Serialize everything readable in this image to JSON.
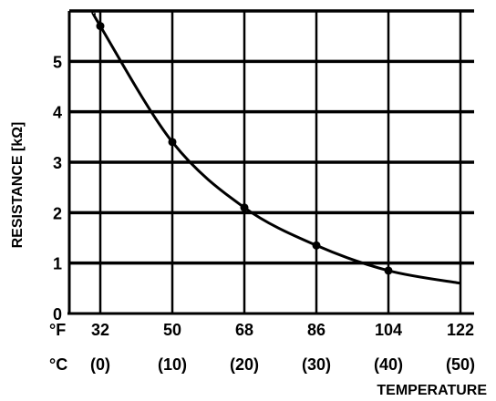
{
  "chart_data": {
    "type": "line",
    "ylabel": "RESISTANCE [kΩ]",
    "xlabel": "TEMPERATURE",
    "x_unit_labels": [
      "°F",
      "°C"
    ],
    "x_ticks_f": [
      32,
      50,
      68,
      86,
      104,
      122
    ],
    "x_ticks_c": [
      "(0)",
      "(10)",
      "(20)",
      "(30)",
      "(40)",
      "(50)"
    ],
    "y_ticks": [
      0,
      1,
      2,
      3,
      4,
      5
    ],
    "xlim_f": [
      32,
      122
    ],
    "ylim": [
      0,
      6
    ],
    "grid": true,
    "series": [
      {
        "points": [
          {
            "x": 32,
            "y": 5.7
          },
          {
            "x": 50,
            "y": 3.4
          },
          {
            "x": 68,
            "y": 2.1
          },
          {
            "x": 86,
            "y": 1.35
          },
          {
            "x": 104,
            "y": 0.85
          }
        ],
        "curve_end": {
          "x": 122,
          "y": 0.6
        }
      }
    ]
  }
}
